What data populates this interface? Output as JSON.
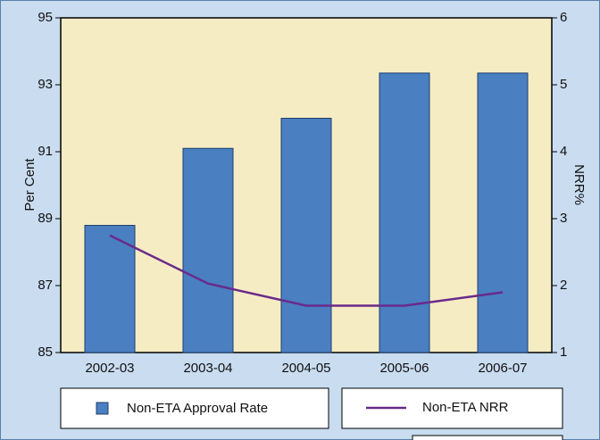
{
  "chart_data": {
    "type": "bar_line",
    "categories": [
      "2002-03",
      "2003-04",
      "2004-05",
      "2005-06",
      "2006-07"
    ],
    "series": [
      {
        "name": "Non-ETA Approval Rate",
        "color": "#4a7fc1",
        "values": [
          88.8,
          91.1,
          92.0,
          93.35,
          93.35
        ]
      },
      {
        "name": "Non-ETA NRR",
        "color": "#6a2a8a",
        "axis": "y2",
        "values": [
          2.75,
          2.03,
          1.7,
          1.7,
          1.9
        ]
      }
    ],
    "ylabel": "Per Cent",
    "y2label": "NRR%",
    "ylim": [
      85,
      95
    ],
    "yticks": [
      85,
      87,
      89,
      91,
      93,
      95
    ],
    "y2lim": [
      1,
      6
    ],
    "y2ticks": [
      1,
      2,
      3,
      4,
      5,
      6
    ]
  }
}
